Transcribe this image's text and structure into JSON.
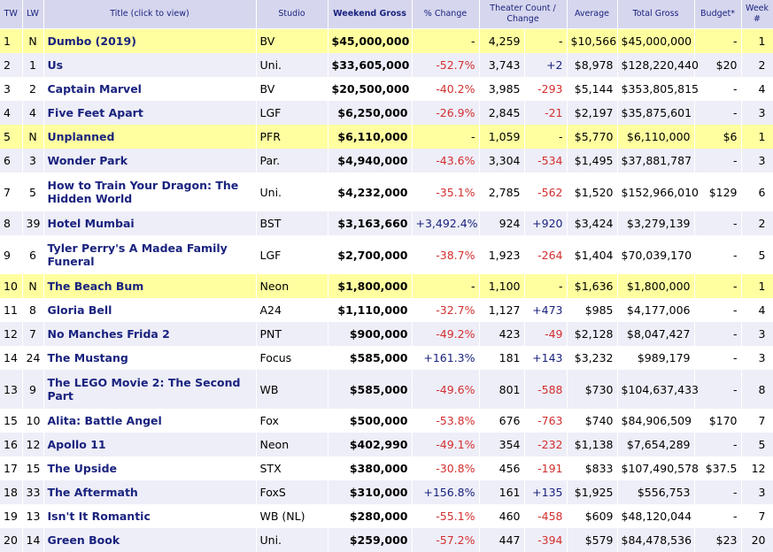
{
  "headers": {
    "tw": "TW",
    "lw": "LW",
    "title": "Title (click to view)",
    "studio": "Studio",
    "gross": "Weekend Gross",
    "pct": "% Change",
    "theaters": "Theater Count / Change",
    "average": "Average",
    "total": "Total Gross",
    "budget": "Budget*",
    "week": "Week #"
  },
  "rows": [
    {
      "tw": "1",
      "lw": "N",
      "title": "Dumbo (2019)",
      "studio": "BV",
      "gross": "$45,000,000",
      "pct": "-",
      "theaters": "4,259",
      "change": "-",
      "average": "$10,566",
      "total": "$45,000,000",
      "budget": "-",
      "week": "1",
      "highlight": true
    },
    {
      "tw": "2",
      "lw": "1",
      "title": "Us",
      "studio": "Uni.",
      "gross": "$33,605,000",
      "pct": "-52.7%",
      "theaters": "3,743",
      "change": "+2",
      "average": "$8,978",
      "total": "$128,220,440",
      "budget": "$20",
      "week": "2"
    },
    {
      "tw": "3",
      "lw": "2",
      "title": "Captain Marvel",
      "studio": "BV",
      "gross": "$20,500,000",
      "pct": "-40.2%",
      "theaters": "3,985",
      "change": "-293",
      "average": "$5,144",
      "total": "$353,805,815",
      "budget": "-",
      "week": "4"
    },
    {
      "tw": "4",
      "lw": "4",
      "title": "Five Feet Apart",
      "studio": "LGF",
      "gross": "$6,250,000",
      "pct": "-26.9%",
      "theaters": "2,845",
      "change": "-21",
      "average": "$2,197",
      "total": "$35,875,601",
      "budget": "-",
      "week": "3"
    },
    {
      "tw": "5",
      "lw": "N",
      "title": "Unplanned",
      "studio": "PFR",
      "gross": "$6,110,000",
      "pct": "-",
      "theaters": "1,059",
      "change": "-",
      "average": "$5,770",
      "total": "$6,110,000",
      "budget": "$6",
      "week": "1",
      "highlight": true
    },
    {
      "tw": "6",
      "lw": "3",
      "title": "Wonder Park",
      "studio": "Par.",
      "gross": "$4,940,000",
      "pct": "-43.6%",
      "theaters": "3,304",
      "change": "-534",
      "average": "$1,495",
      "total": "$37,881,787",
      "budget": "-",
      "week": "3"
    },
    {
      "tw": "7",
      "lw": "5",
      "title": "How to Train Your Dragon: The Hidden World",
      "studio": "Uni.",
      "gross": "$4,232,000",
      "pct": "-35.1%",
      "theaters": "2,785",
      "change": "-562",
      "average": "$1,520",
      "total": "$152,966,010",
      "budget": "$129",
      "week": "6",
      "tall": true
    },
    {
      "tw": "8",
      "lw": "39",
      "title": "Hotel Mumbai",
      "studio": "BST",
      "gross": "$3,163,660",
      "pct": "+3,492.4%",
      "theaters": "924",
      "change": "+920",
      "average": "$3,424",
      "total": "$3,279,139",
      "budget": "-",
      "week": "2"
    },
    {
      "tw": "9",
      "lw": "6",
      "title": "Tyler Perry's A Madea Family Funeral",
      "studio": "LGF",
      "gross": "$2,700,000",
      "pct": "-38.7%",
      "theaters": "1,923",
      "change": "-264",
      "average": "$1,404",
      "total": "$70,039,170",
      "budget": "-",
      "week": "5",
      "tall": true
    },
    {
      "tw": "10",
      "lw": "N",
      "title": "The Beach Bum",
      "studio": "Neon",
      "gross": "$1,800,000",
      "pct": "-",
      "theaters": "1,100",
      "change": "-",
      "average": "$1,636",
      "total": "$1,800,000",
      "budget": "-",
      "week": "1",
      "highlight": true
    },
    {
      "tw": "11",
      "lw": "8",
      "title": "Gloria Bell",
      "studio": "A24",
      "gross": "$1,110,000",
      "pct": "-32.7%",
      "theaters": "1,127",
      "change": "+473",
      "average": "$985",
      "total": "$4,177,006",
      "budget": "-",
      "week": "4"
    },
    {
      "tw": "12",
      "lw": "7",
      "title": "No Manches Frida 2",
      "studio": "PNT",
      "gross": "$900,000",
      "pct": "-49.2%",
      "theaters": "423",
      "change": "-49",
      "average": "$2,128",
      "total": "$8,047,427",
      "budget": "-",
      "week": "3"
    },
    {
      "tw": "14",
      "lw": "24",
      "title": "The Mustang",
      "studio": "Focus",
      "gross": "$585,000",
      "pct": "+161.3%",
      "theaters": "181",
      "change": "+143",
      "average": "$3,232",
      "total": "$989,179",
      "budget": "-",
      "week": "3"
    },
    {
      "tw": "13",
      "lw": "9",
      "title": "The LEGO Movie 2: The Second Part",
      "studio": "WB",
      "gross": "$585,000",
      "pct": "-49.6%",
      "theaters": "801",
      "change": "-588",
      "average": "$730",
      "total": "$104,637,433",
      "budget": "-",
      "week": "8",
      "tall": true
    },
    {
      "tw": "15",
      "lw": "10",
      "title": "Alita: Battle Angel",
      "studio": "Fox",
      "gross": "$500,000",
      "pct": "-53.8%",
      "theaters": "676",
      "change": "-763",
      "average": "$740",
      "total": "$84,906,509",
      "budget": "$170",
      "week": "7"
    },
    {
      "tw": "16",
      "lw": "12",
      "title": "Apollo 11",
      "studio": "Neon",
      "gross": "$402,990",
      "pct": "-49.1%",
      "theaters": "354",
      "change": "-232",
      "average": "$1,138",
      "total": "$7,654,289",
      "budget": "-",
      "week": "5"
    },
    {
      "tw": "17",
      "lw": "15",
      "title": "The Upside",
      "studio": "STX",
      "gross": "$380,000",
      "pct": "-30.8%",
      "theaters": "456",
      "change": "-191",
      "average": "$833",
      "total": "$107,490,578",
      "budget": "$37.5",
      "week": "12"
    },
    {
      "tw": "18",
      "lw": "33",
      "title": "The Aftermath",
      "studio": "FoxS",
      "gross": "$310,000",
      "pct": "+156.8%",
      "theaters": "161",
      "change": "+135",
      "average": "$1,925",
      "total": "$556,753",
      "budget": "-",
      "week": "3"
    },
    {
      "tw": "19",
      "lw": "13",
      "title": "Isn't It Romantic",
      "studio": "WB (NL)",
      "gross": "$280,000",
      "pct": "-55.1%",
      "theaters": "460",
      "change": "-458",
      "average": "$609",
      "total": "$48,120,044",
      "budget": "-",
      "week": "7"
    },
    {
      "tw": "20",
      "lw": "14",
      "title": "Green Book",
      "studio": "Uni.",
      "gross": "$259,000",
      "pct": "-57.2%",
      "theaters": "447",
      "change": "-394",
      "average": "$579",
      "total": "$84,478,536",
      "budget": "$23",
      "week": "20"
    }
  ]
}
